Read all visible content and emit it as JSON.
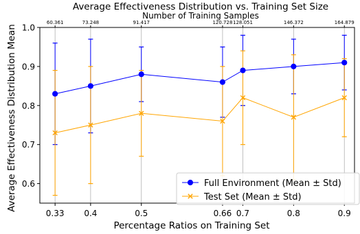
{
  "chart_data": {
    "type": "line",
    "title": "Average Effectiveness Distribution vs. Training Set Size",
    "secondary_xlabel": "Number of Training Samples",
    "xlabel": "Percentage Ratios on Training Set",
    "ylabel": "Average Effectiveness Distribution Mean",
    "x": [
      0.33,
      0.4,
      0.5,
      0.66,
      0.7,
      0.8,
      0.9
    ],
    "x_tick_labels": [
      "0.33",
      "0.4",
      "0.5",
      "0.66",
      "0.7",
      "0.8",
      "0.9"
    ],
    "top_tick_labels": [
      "60.361",
      "73.248",
      "91.417",
      "120.728",
      "128.051",
      "146.372",
      "164.879"
    ],
    "xlim": [
      0.3,
      0.92
    ],
    "ylim": [
      0.55,
      1.0
    ],
    "y_ticks": [
      0.6,
      0.7,
      0.8,
      0.9,
      1.0
    ],
    "y_tick_labels": [
      "0.6",
      "0.7",
      "0.8",
      "0.9",
      "1.0"
    ],
    "grid": "vertical",
    "legend_position": "lower-right",
    "series": [
      {
        "name": "Full Environment (Mean ± Std)",
        "color": "#0000ff",
        "marker": "circle",
        "values": [
          0.83,
          0.85,
          0.88,
          0.86,
          0.89,
          0.9,
          0.91
        ],
        "std": [
          0.13,
          0.12,
          0.07,
          0.09,
          0.09,
          0.07,
          0.07
        ]
      },
      {
        "name": "Test Set (Mean ± Std)",
        "color": "#ffa500",
        "marker": "x",
        "values": [
          0.73,
          0.75,
          0.78,
          0.76,
          0.82,
          0.77,
          0.82
        ],
        "std": [
          0.16,
          0.15,
          0.11,
          0.14,
          0.12,
          0.16,
          0.1
        ]
      }
    ]
  }
}
